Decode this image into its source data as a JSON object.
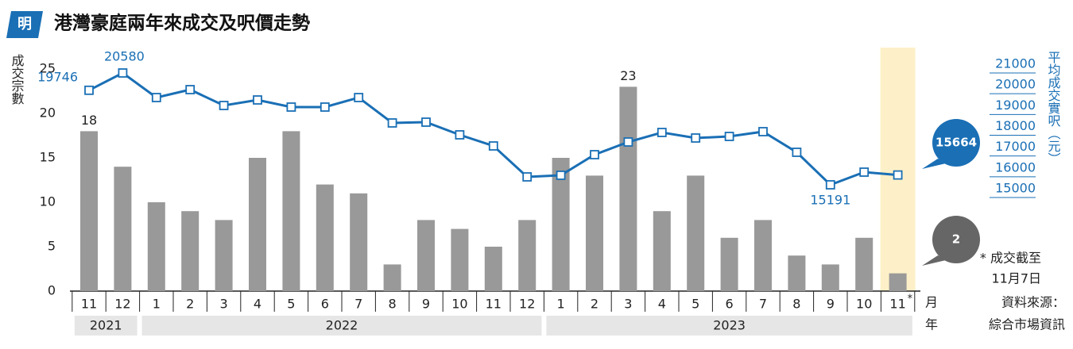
{
  "chart_data": {
    "type": "bar-line",
    "title": "港灣豪庭兩年來成交及呎價走勢",
    "logo": "明",
    "y_label": "成交宗數",
    "y2_label": "平均成交實呎（元）",
    "categories": [
      "11",
      "12",
      "1",
      "2",
      "3",
      "4",
      "5",
      "6",
      "7",
      "8",
      "9",
      "10",
      "11",
      "12",
      "1",
      "2",
      "3",
      "4",
      "5",
      "6",
      "7",
      "8",
      "9",
      "10",
      "11"
    ],
    "years": [
      "2021",
      "2022",
      "2023"
    ],
    "x_unit": "月",
    "year_unit": "年",
    "note_marker": "*",
    "note": [
      "* 成交截至",
      "11月7日"
    ],
    "source": [
      "資料來源：",
      "綜合市場資訊"
    ],
    "highlight_color": "#fdf0c8",
    "series": [
      {
        "type": "bar",
        "color": "#999999",
        "values": [
          18,
          14,
          10,
          9,
          8,
          15,
          18,
          12,
          11,
          3,
          8,
          7,
          5,
          8,
          15,
          13,
          23,
          9,
          13,
          6,
          8,
          4,
          3,
          6,
          2
        ]
      },
      {
        "type": "line",
        "axis": "y2",
        "color": "#1a6fb5",
        "values": [
          19746,
          20580,
          19395,
          19777,
          19013,
          19280,
          18937,
          18937,
          19395,
          18172,
          18210,
          17599,
          17064,
          15573,
          15650,
          16643,
          17255,
          17713,
          17446,
          17522,
          17752,
          16758,
          15191,
          15802,
          15664
        ]
      }
    ],
    "ylim": [
      0,
      25
    ],
    "yticks": [
      0,
      5,
      10,
      15,
      20,
      25
    ],
    "y2lim": [
      15000,
      21000
    ],
    "y2ticks": [
      15000,
      16000,
      17000,
      18000,
      19000,
      20000,
      21000
    ]
  }
}
